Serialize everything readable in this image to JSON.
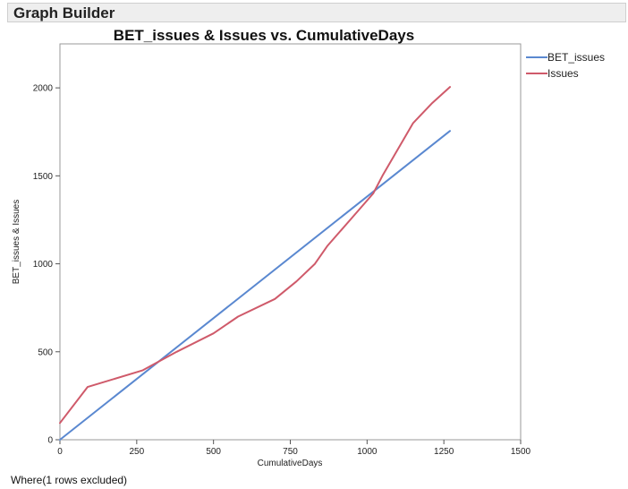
{
  "header": {
    "title": "Graph Builder"
  },
  "footer": {
    "text": "Where(1 rows excluded)"
  },
  "chart_data": {
    "type": "line",
    "title": "BET_issues & Issues vs. CumulativeDays",
    "xlabel": "CumulativeDays",
    "ylabel": "BET_issues & Issues",
    "xlim": [
      0,
      1500
    ],
    "ylim": [
      0,
      2250
    ],
    "xticks": [
      0,
      250,
      500,
      750,
      1000,
      1250,
      1500
    ],
    "yticks": [
      0,
      500,
      1000,
      1500,
      2000
    ],
    "grid": false,
    "legend_position": "right",
    "series": [
      {
        "name": "BET_issues",
        "color": "#5a88d0",
        "x": [
          0,
          1270
        ],
        "y": [
          0,
          1755
        ]
      },
      {
        "name": "Issues",
        "color": "#cf5a6a",
        "x": [
          0,
          90,
          270,
          380,
          500,
          580,
          700,
          770,
          830,
          870,
          950,
          1020,
          1050,
          1150,
          1210,
          1270
        ],
        "y": [
          95,
          300,
          395,
          500,
          605,
          700,
          800,
          900,
          1000,
          1100,
          1260,
          1400,
          1500,
          1800,
          1910,
          2005
        ]
      }
    ]
  }
}
